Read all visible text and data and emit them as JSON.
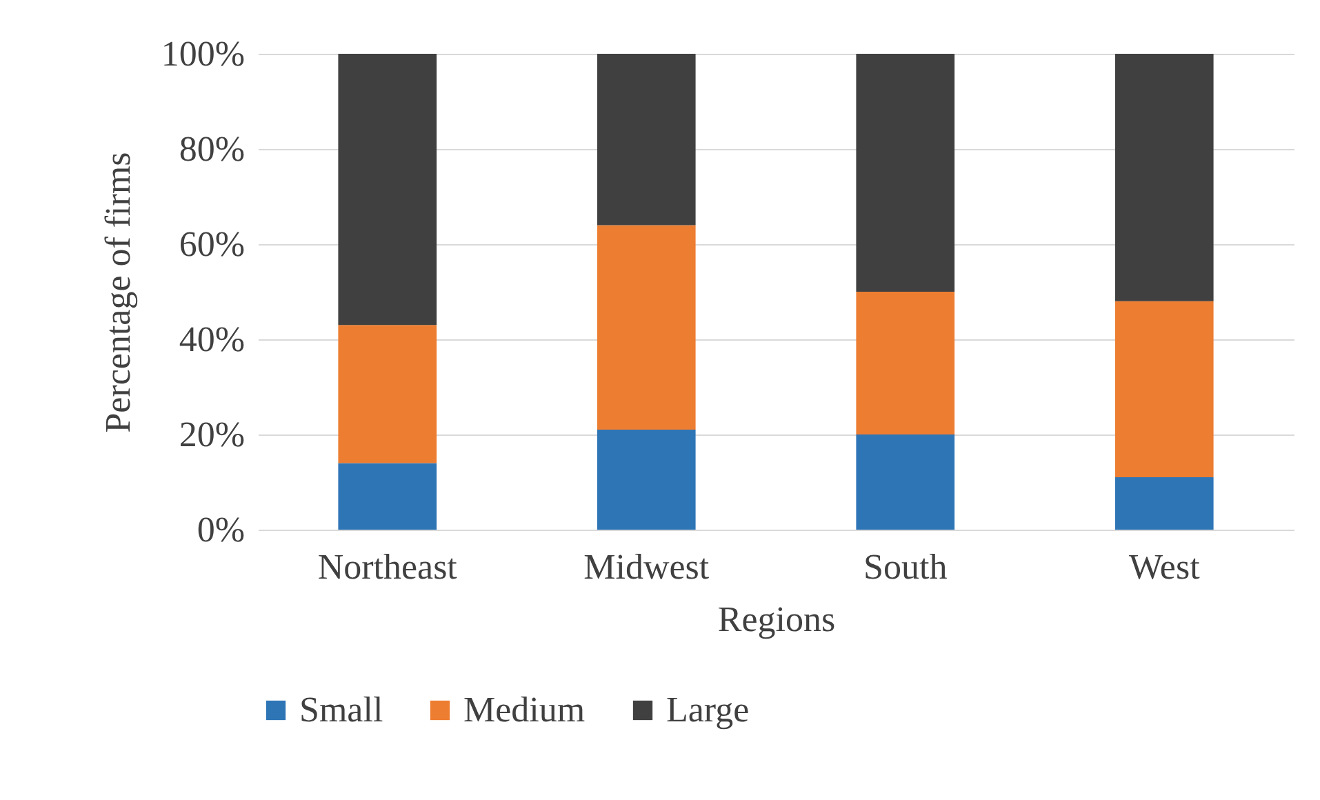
{
  "chart_data": {
    "type": "bar",
    "stacked": true,
    "xlabel": "Regions",
    "ylabel": "Percentage of firms",
    "categories": [
      "Northeast",
      "Midwest",
      "South",
      "West"
    ],
    "series": [
      {
        "name": "Small",
        "color": "#2e75b6",
        "values": [
          14,
          21,
          20,
          11
        ]
      },
      {
        "name": "Medium",
        "color": "#ed7d31",
        "values": [
          29,
          43,
          30,
          37
        ]
      },
      {
        "name": "Large",
        "color": "#404040",
        "values": [
          57,
          36,
          50,
          52
        ]
      }
    ],
    "ylim": [
      0,
      100
    ],
    "yticks": [
      {
        "value": 0,
        "label": "0%"
      },
      {
        "value": 20,
        "label": "20%"
      },
      {
        "value": 40,
        "label": "40%"
      },
      {
        "value": 60,
        "label": "60%"
      },
      {
        "value": 80,
        "label": "80%"
      },
      {
        "value": 100,
        "label": "100%"
      }
    ],
    "grid": "y",
    "legend": "bottom"
  }
}
